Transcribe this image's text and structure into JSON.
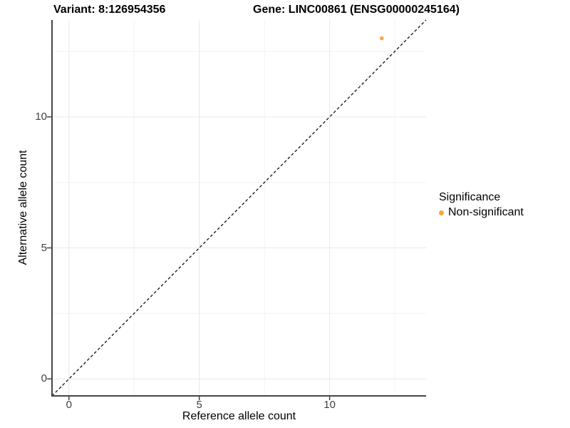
{
  "header": {
    "variant_title": "Variant: 8:126954356",
    "gene_title": "Gene: LINC00861 (ENSG00000245164)"
  },
  "chart_data": {
    "type": "scatter",
    "title": "Variant: 8:126954356    Gene: LINC00861 (ENSG00000245164)",
    "xlabel": "Reference allele count",
    "ylabel": "Alternative allele count",
    "xlim": [
      -0.65,
      13.7
    ],
    "ylim": [
      -0.65,
      13.7
    ],
    "x_ticks": {
      "major": [
        0,
        5,
        10
      ],
      "labels": [
        "0",
        "5",
        "10"
      ],
      "minor": [
        2.5,
        7.5,
        12.5
      ]
    },
    "y_ticks": {
      "major": [
        0,
        5,
        10
      ],
      "labels": [
        "0",
        "5",
        "10"
      ],
      "minor": [
        2.5,
        7.5,
        12.5
      ]
    },
    "grid": true,
    "reference_line": {
      "type": "identity y = x",
      "style": "dashed",
      "color": "#111111"
    },
    "series": [
      {
        "name": "Non-significant",
        "color": "#F8A53F",
        "points": [
          {
            "x": 12,
            "y": 13
          }
        ]
      }
    ],
    "legend": {
      "title": "Significance",
      "position": "right",
      "items": [
        {
          "label": "Non-significant",
          "color": "#F8A53F"
        }
      ]
    }
  },
  "colors": {
    "background": "#FFFFFF",
    "grid_major": "#E8E8E8",
    "grid_minor": "#F3F3F3",
    "axis_line": "#464646",
    "tick_label_color": "#404040",
    "title_color": "#000000"
  }
}
